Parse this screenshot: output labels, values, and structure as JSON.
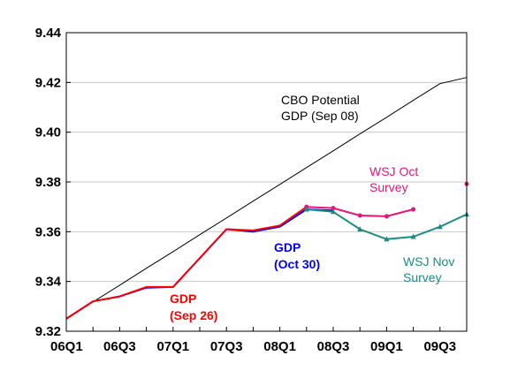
{
  "chart_data": {
    "type": "line",
    "title": "",
    "xlabel": "",
    "ylabel": "",
    "ylim": [
      9.32,
      9.44
    ],
    "yticks": [
      "9.32",
      "9.34",
      "9.36",
      "9.38",
      "9.40",
      "9.42",
      "9.44"
    ],
    "x_periods": [
      "06Q1",
      "06Q2",
      "06Q3",
      "06Q4",
      "07Q1",
      "07Q2",
      "07Q3",
      "07Q4",
      "08Q1",
      "08Q2",
      "08Q3",
      "08Q4",
      "09Q1",
      "09Q2",
      "09Q3",
      "09Q4"
    ],
    "xtick_labels": [
      "06Q1",
      "06Q3",
      "07Q1",
      "07Q3",
      "08Q1",
      "08Q3",
      "09Q1",
      "09Q3"
    ],
    "grid": "horizontal",
    "series": [
      {
        "name": "CBO Potential GDP (Sep 08)",
        "color": "#000000",
        "marker": "none",
        "values": [
          9.325,
          9.3318,
          9.3385,
          9.3453,
          9.352,
          9.3588,
          9.3655,
          9.3723,
          9.379,
          9.3858,
          9.3925,
          9.3993,
          9.406,
          9.4128,
          9.4195,
          9.422
        ]
      },
      {
        "name": "GDP (Oct 30)",
        "color": "#0000ff",
        "marker": "none",
        "values": [
          9.325,
          9.332,
          9.334,
          9.3375,
          9.3378,
          null,
          9.361,
          9.36,
          9.362,
          9.369,
          9.3685,
          null,
          null,
          null,
          null,
          null
        ]
      },
      {
        "name": "GDP (Sep 26)",
        "color": "#ff0000",
        "marker": "none",
        "values": [
          9.325,
          9.332,
          9.334,
          9.3378,
          9.3378,
          null,
          9.361,
          9.3605,
          9.3625,
          9.37,
          null,
          null,
          null,
          null,
          null,
          null
        ]
      },
      {
        "name": "WSJ Oct Survey",
        "color": "#e6157a",
        "marker": "circle",
        "values": [
          null,
          null,
          null,
          null,
          null,
          null,
          null,
          null,
          null,
          9.37,
          9.3695,
          9.3665,
          9.3662,
          9.369,
          null,
          9.3792
        ]
      },
      {
        "name": "WSJ Nov Survey",
        "color": "#1a8c85",
        "marker": "triangle",
        "values": [
          null,
          null,
          null,
          null,
          null,
          null,
          null,
          null,
          null,
          9.369,
          9.368,
          9.361,
          9.357,
          9.358,
          9.362,
          9.367
        ]
      }
    ],
    "annotations": [
      {
        "id": "cbo",
        "lines": [
          "CBO Potential",
          "GDP (Sep 08)"
        ],
        "color": "#000000",
        "bold": false
      },
      {
        "id": "wsj-oct",
        "lines": [
          "WSJ Oct",
          "Survey"
        ],
        "color": "#e6157a",
        "bold": false
      },
      {
        "id": "wsj-nov",
        "lines": [
          "WSJ Nov",
          "Survey"
        ],
        "color": "#1a8c85",
        "bold": false
      },
      {
        "id": "gdp-oct",
        "lines": [
          "GDP",
          "(Oct 30)"
        ],
        "color": "#0000ff",
        "bold": true
      },
      {
        "id": "gdp-sep",
        "lines": [
          "GDP",
          "(Sep 26)"
        ],
        "color": "#ff0000",
        "bold": true
      }
    ]
  }
}
